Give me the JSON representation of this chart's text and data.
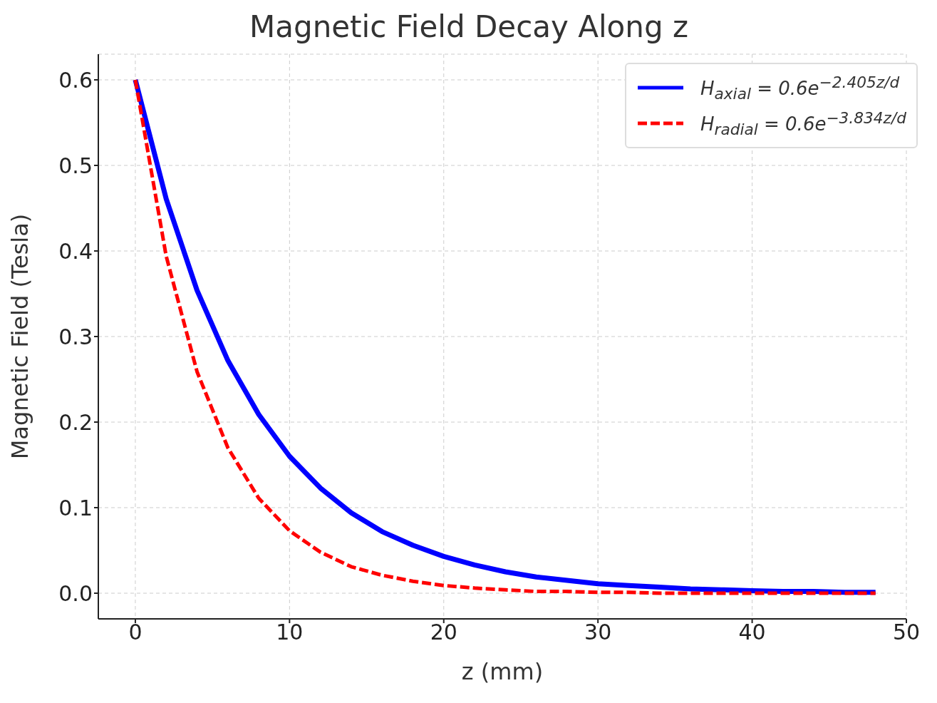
{
  "chart_data": {
    "type": "line",
    "title": "Magnetic Field Decay Along z",
    "xlabel": "z (mm)",
    "ylabel": "Magnetic Field (Tesla)",
    "x": [
      0,
      2,
      4,
      6,
      8,
      10,
      12,
      14,
      16,
      18,
      20,
      22,
      24,
      26,
      28,
      30,
      32,
      34,
      36,
      38,
      40,
      42,
      44,
      46,
      48
    ],
    "series": [
      {
        "name": "H$_{axial}$ = 0.6e$^{−2.405z/d}$",
        "color": "#0000ff",
        "line_style": "solid",
        "values": [
          0.6,
          0.461,
          0.354,
          0.272,
          0.209,
          0.16,
          0.123,
          0.094,
          0.072,
          0.056,
          0.043,
          0.033,
          0.025,
          0.019,
          0.015,
          0.011,
          0.009,
          0.007,
          0.005,
          0.004,
          0.003,
          0.002,
          0.002,
          0.001,
          0.001
        ]
      },
      {
        "name": "H$_{radial}$ = 0.6e$^{−3.834z/d}$",
        "color": "#ff0000",
        "line_style": "dashed",
        "values": [
          0.6,
          0.394,
          0.259,
          0.17,
          0.111,
          0.073,
          0.048,
          0.031,
          0.021,
          0.014,
          0.009,
          0.006,
          0.004,
          0.002,
          0.002,
          0.001,
          0.001,
          0.0,
          0.0,
          0.0,
          0.0,
          0.0,
          0.0,
          0.0,
          0.0
        ]
      }
    ],
    "xlim": [
      -2.4,
      50
    ],
    "xticks": [
      0,
      10,
      20,
      30,
      40,
      50
    ],
    "ylim": [
      -0.03,
      0.63
    ],
    "yticks": [
      {
        "value": 0,
        "label": "0.0"
      },
      {
        "value": 0.1,
        "label": "0.1"
      },
      {
        "value": 0.2,
        "label": "0.2"
      },
      {
        "value": 0.3,
        "label": "0.3"
      },
      {
        "value": 0.4,
        "label": "0.4"
      },
      {
        "value": 0.5,
        "label": "0.5"
      },
      {
        "value": 0.6,
        "label": "0.6"
      }
    ],
    "grid": true,
    "legend": "top right",
    "marker": "none"
  }
}
